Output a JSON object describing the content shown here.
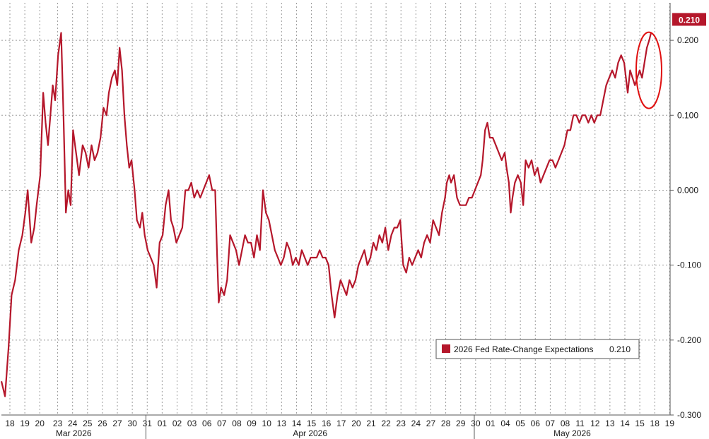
{
  "chart_data": {
    "type": "line",
    "title": "",
    "series": [
      {
        "name": "2026 Fed Rate-Change Expectations",
        "last_value_label": "0.210",
        "color": "#b5172b",
        "points": [
          [
            0,
            -0.255
          ],
          [
            0.6,
            -0.275
          ],
          [
            1.2,
            -0.21
          ],
          [
            1.7,
            -0.14
          ],
          [
            2.3,
            -0.12
          ],
          [
            2.9,
            -0.08
          ],
          [
            3.5,
            -0.06
          ],
          [
            4.0,
            -0.03
          ],
          [
            4.4,
            0.0
          ],
          [
            5.0,
            -0.07
          ],
          [
            5.5,
            -0.05
          ],
          [
            5.9,
            -0.02
          ],
          [
            6.5,
            0.02
          ],
          [
            7.0,
            0.13
          ],
          [
            7.4,
            0.09
          ],
          [
            7.8,
            0.06
          ],
          [
            8.2,
            0.1
          ],
          [
            8.6,
            0.14
          ],
          [
            9.0,
            0.12
          ],
          [
            9.5,
            0.18
          ],
          [
            10.0,
            0.21
          ],
          [
            10.4,
            0.1
          ],
          [
            10.8,
            -0.03
          ],
          [
            11.2,
            0.0
          ],
          [
            11.6,
            -0.02
          ],
          [
            12.0,
            0.08
          ],
          [
            12.5,
            0.05
          ],
          [
            13.0,
            0.02
          ],
          [
            13.6,
            0.06
          ],
          [
            14.1,
            0.05
          ],
          [
            14.6,
            0.03
          ],
          [
            15.1,
            0.06
          ],
          [
            15.6,
            0.04
          ],
          [
            16.1,
            0.05
          ],
          [
            16.6,
            0.07
          ],
          [
            17.1,
            0.11
          ],
          [
            17.6,
            0.1
          ],
          [
            18.0,
            0.13
          ],
          [
            18.5,
            0.15
          ],
          [
            19.0,
            0.16
          ],
          [
            19.4,
            0.14
          ],
          [
            19.8,
            0.19
          ],
          [
            20.2,
            0.16
          ],
          [
            20.6,
            0.1
          ],
          [
            21.0,
            0.06
          ],
          [
            21.4,
            0.03
          ],
          [
            21.8,
            0.04
          ],
          [
            22.3,
            0.0
          ],
          [
            22.7,
            -0.04
          ],
          [
            23.2,
            -0.05
          ],
          [
            23.6,
            -0.03
          ],
          [
            24.0,
            -0.06
          ],
          [
            24.5,
            -0.08
          ],
          [
            25.0,
            -0.09
          ],
          [
            25.5,
            -0.1
          ],
          [
            26.0,
            -0.13
          ],
          [
            26.5,
            -0.07
          ],
          [
            27.0,
            -0.06
          ],
          [
            27.5,
            -0.02
          ],
          [
            28.0,
            0.0
          ],
          [
            28.4,
            -0.04
          ],
          [
            28.8,
            -0.05
          ],
          [
            29.3,
            -0.07
          ],
          [
            29.8,
            -0.06
          ],
          [
            30.3,
            -0.05
          ],
          [
            30.8,
            0.0
          ],
          [
            31.3,
            0.0
          ],
          [
            31.8,
            0.01
          ],
          [
            32.3,
            -0.01
          ],
          [
            32.8,
            0.0
          ],
          [
            33.3,
            -0.01
          ],
          [
            33.8,
            0.0
          ],
          [
            34.3,
            0.01
          ],
          [
            34.8,
            0.02
          ],
          [
            35.3,
            0.0
          ],
          [
            35.8,
            0.0
          ],
          [
            36.1,
            -0.08
          ],
          [
            36.4,
            -0.15
          ],
          [
            36.8,
            -0.13
          ],
          [
            37.3,
            -0.14
          ],
          [
            37.8,
            -0.12
          ],
          [
            38.3,
            -0.06
          ],
          [
            38.8,
            -0.07
          ],
          [
            39.3,
            -0.08
          ],
          [
            39.8,
            -0.1
          ],
          [
            40.3,
            -0.08
          ],
          [
            40.8,
            -0.06
          ],
          [
            41.3,
            -0.07
          ],
          [
            41.8,
            -0.07
          ],
          [
            42.3,
            -0.09
          ],
          [
            42.8,
            -0.06
          ],
          [
            43.3,
            -0.08
          ],
          [
            43.8,
            0.0
          ],
          [
            44.3,
            -0.03
          ],
          [
            44.8,
            -0.04
          ],
          [
            45.3,
            -0.06
          ],
          [
            45.8,
            -0.08
          ],
          [
            46.3,
            -0.09
          ],
          [
            46.8,
            -0.1
          ],
          [
            47.3,
            -0.09
          ],
          [
            47.8,
            -0.07
          ],
          [
            48.3,
            -0.08
          ],
          [
            48.8,
            -0.1
          ],
          [
            49.3,
            -0.09
          ],
          [
            49.8,
            -0.1
          ],
          [
            50.3,
            -0.08
          ],
          [
            50.8,
            -0.09
          ],
          [
            51.3,
            -0.1
          ],
          [
            51.8,
            -0.09
          ],
          [
            52.3,
            -0.09
          ],
          [
            52.8,
            -0.09
          ],
          [
            53.3,
            -0.08
          ],
          [
            53.8,
            -0.09
          ],
          [
            54.3,
            -0.09
          ],
          [
            54.8,
            -0.1
          ],
          [
            55.3,
            -0.14
          ],
          [
            55.8,
            -0.17
          ],
          [
            56.3,
            -0.14
          ],
          [
            56.8,
            -0.12
          ],
          [
            57.3,
            -0.13
          ],
          [
            57.8,
            -0.14
          ],
          [
            58.3,
            -0.12
          ],
          [
            58.8,
            -0.13
          ],
          [
            59.3,
            -0.12
          ],
          [
            59.8,
            -0.1
          ],
          [
            60.3,
            -0.09
          ],
          [
            60.8,
            -0.08
          ],
          [
            61.3,
            -0.1
          ],
          [
            61.8,
            -0.09
          ],
          [
            62.3,
            -0.07
          ],
          [
            62.8,
            -0.08
          ],
          [
            63.3,
            -0.06
          ],
          [
            63.8,
            -0.07
          ],
          [
            64.3,
            -0.05
          ],
          [
            64.8,
            -0.08
          ],
          [
            65.3,
            -0.06
          ],
          [
            65.8,
            -0.05
          ],
          [
            66.3,
            -0.05
          ],
          [
            66.8,
            -0.04
          ],
          [
            67.3,
            -0.1
          ],
          [
            67.8,
            -0.11
          ],
          [
            68.3,
            -0.09
          ],
          [
            68.8,
            -0.1
          ],
          [
            69.3,
            -0.09
          ],
          [
            69.8,
            -0.08
          ],
          [
            70.3,
            -0.09
          ],
          [
            70.8,
            -0.07
          ],
          [
            71.3,
            -0.06
          ],
          [
            71.8,
            -0.07
          ],
          [
            72.3,
            -0.04
          ],
          [
            72.8,
            -0.05
          ],
          [
            73.3,
            -0.06
          ],
          [
            73.8,
            -0.03
          ],
          [
            74.3,
            -0.01
          ],
          [
            74.6,
            0.01
          ],
          [
            75.0,
            0.02
          ],
          [
            75.3,
            0.01
          ],
          [
            75.8,
            0.02
          ],
          [
            76.3,
            -0.01
          ],
          [
            76.8,
            -0.02
          ],
          [
            77.3,
            -0.02
          ],
          [
            77.8,
            -0.02
          ],
          [
            78.3,
            -0.01
          ],
          [
            78.8,
            -0.01
          ],
          [
            79.3,
            0.0
          ],
          [
            79.8,
            0.01
          ],
          [
            80.3,
            0.02
          ],
          [
            80.6,
            0.04
          ],
          [
            81.0,
            0.08
          ],
          [
            81.4,
            0.09
          ],
          [
            81.8,
            0.07
          ],
          [
            82.3,
            0.07
          ],
          [
            82.8,
            0.06
          ],
          [
            83.3,
            0.05
          ],
          [
            83.8,
            0.04
          ],
          [
            84.3,
            0.05
          ],
          [
            84.6,
            0.03
          ],
          [
            85.0,
            0.01
          ],
          [
            85.3,
            -0.03
          ],
          [
            85.6,
            -0.01
          ],
          [
            86.0,
            0.01
          ],
          [
            86.5,
            0.02
          ],
          [
            87.0,
            0.01
          ],
          [
            87.4,
            -0.02
          ],
          [
            87.8,
            0.04
          ],
          [
            88.3,
            0.03
          ],
          [
            88.8,
            0.04
          ],
          [
            89.3,
            0.02
          ],
          [
            89.8,
            0.03
          ],
          [
            90.3,
            0.01
          ],
          [
            90.8,
            0.02
          ],
          [
            91.3,
            0.03
          ],
          [
            91.8,
            0.04
          ],
          [
            92.3,
            0.04
          ],
          [
            92.8,
            0.03
          ],
          [
            93.3,
            0.04
          ],
          [
            93.8,
            0.05
          ],
          [
            94.3,
            0.06
          ],
          [
            94.8,
            0.08
          ],
          [
            95.3,
            0.08
          ],
          [
            95.8,
            0.1
          ],
          [
            96.3,
            0.1
          ],
          [
            96.8,
            0.09
          ],
          [
            97.3,
            0.1
          ],
          [
            97.8,
            0.1
          ],
          [
            98.3,
            0.09
          ],
          [
            98.8,
            0.1
          ],
          [
            99.3,
            0.09
          ],
          [
            99.8,
            0.1
          ],
          [
            100.3,
            0.1
          ],
          [
            100.8,
            0.12
          ],
          [
            101.3,
            0.14
          ],
          [
            101.8,
            0.15
          ],
          [
            102.3,
            0.16
          ],
          [
            102.8,
            0.15
          ],
          [
            103.3,
            0.17
          ],
          [
            103.8,
            0.18
          ],
          [
            104.3,
            0.17
          ],
          [
            104.6,
            0.15
          ],
          [
            104.9,
            0.13
          ],
          [
            105.3,
            0.16
          ],
          [
            105.7,
            0.15
          ],
          [
            106.1,
            0.14
          ],
          [
            106.5,
            0.15
          ],
          [
            106.9,
            0.16
          ],
          [
            107.3,
            0.15
          ],
          [
            107.7,
            0.17
          ],
          [
            108.1,
            0.19
          ],
          [
            108.5,
            0.2
          ],
          [
            108.8,
            0.21
          ]
        ]
      }
    ],
    "ylim": [
      -0.3,
      0.25
    ],
    "yticks": [
      "0.200",
      "0.100",
      "0.000",
      "-0.100",
      "-0.200",
      "-0.300"
    ],
    "ytick_values": [
      0.2,
      0.1,
      0.0,
      -0.1,
      -0.2,
      -0.3
    ],
    "x_days": [
      "18",
      "19",
      "20",
      "23",
      "24",
      "25",
      "26",
      "27",
      "30",
      "31",
      "01",
      "02",
      "03",
      "06",
      "07",
      "08",
      "09",
      "10",
      "13",
      "14",
      "15",
      "16",
      "17",
      "20",
      "21",
      "22",
      "23",
      "24",
      "27",
      "28",
      "29",
      "30",
      "01",
      "04",
      "05",
      "06",
      "07",
      "08",
      "11",
      "12",
      "13",
      "14",
      "15",
      "18",
      "19"
    ],
    "x_day_positions": [
      0,
      2.5,
      5,
      8,
      10.5,
      13,
      15.5,
      18,
      20.5,
      23,
      25.5,
      28,
      30.5,
      33,
      35.5,
      38,
      40.5,
      43,
      45.5,
      48,
      50.5,
      53,
      55.5,
      58,
      60.5,
      63,
      65.5,
      68,
      70.5,
      73,
      75.5,
      78,
      80.5,
      83,
      85.5,
      88,
      90.5,
      93,
      95.5,
      98,
      100.5,
      103,
      105.5,
      108,
      110.5
    ],
    "x_months": [
      {
        "label": "Mar 2026",
        "start": 0,
        "end": 24.2
      },
      {
        "label": "Apr 2026",
        "start": 24.2,
        "end": 79.2
      },
      {
        "label": "May 2026",
        "start": 79.2,
        "end": 112
      }
    ],
    "xlim": [
      0,
      112
    ],
    "grid": true,
    "legend_position": "bottom-right",
    "annotation": "red ellipse highlighting latest move"
  }
}
